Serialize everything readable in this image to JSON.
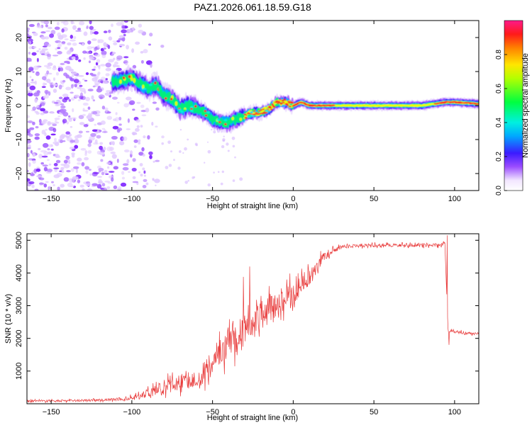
{
  "chart_data": [
    {
      "type": "heatmap",
      "title": "PAZ1.2026.061.18.59.G18",
      "xlabel": "Height of straight line (km)",
      "ylabel": "Frequency (Hz)",
      "xlim": [
        -165,
        115
      ],
      "ylim": [
        -25,
        25
      ],
      "xticks": [
        -150,
        -100,
        -50,
        0,
        50,
        100
      ],
      "yticks": [
        -20,
        -10,
        0,
        10,
        20
      ],
      "colorbar": {
        "label": "Normalized spectral amplitude",
        "range": [
          0.0,
          1.0
        ],
        "ticks": [
          0.0,
          0.2,
          0.4,
          0.6,
          0.8
        ]
      },
      "ridge": {
        "x": [
          -110,
          -100,
          -90,
          -85,
          -80,
          -75,
          -70,
          -65,
          -60,
          -55,
          -50,
          -45,
          -40,
          -35,
          -30,
          -25,
          -20,
          -15,
          -10,
          -5,
          0,
          5,
          10,
          20,
          40,
          60,
          80,
          95,
          100,
          115
        ],
        "y": [
          7,
          8,
          5,
          6,
          3,
          2,
          -1,
          0,
          -1,
          -2,
          -4,
          -5,
          -5,
          -4,
          -3,
          -2,
          -2,
          -1,
          1,
          1,
          0,
          1,
          0,
          0,
          0,
          0,
          0,
          1,
          1,
          0.5
        ]
      },
      "noise_region_x": [
        -165,
        -100
      ]
    },
    {
      "type": "line",
      "title": "",
      "xlabel": "Height of straight line (km)",
      "ylabel": "SNR (10 * v/v)",
      "xlim": [
        -165,
        115
      ],
      "ylim": [
        0,
        5200
      ],
      "xticks": [
        -150,
        -100,
        -50,
        0,
        50,
        100
      ],
      "yticks": [
        1000,
        2000,
        3000,
        4000,
        5000
      ],
      "color": "#e83a3a",
      "series": [
        {
          "name": "SNR",
          "x": [
            -165,
            -150,
            -130,
            -110,
            -100,
            -95,
            -90,
            -85,
            -80,
            -75,
            -70,
            -65,
            -60,
            -55,
            -50,
            -45,
            -40,
            -35,
            -30,
            -25,
            -20,
            -15,
            -10,
            -5,
            0,
            5,
            10,
            15,
            20,
            25,
            30,
            40,
            50,
            60,
            70,
            80,
            90,
            94,
            95,
            96,
            97,
            100,
            110,
            115
          ],
          "values": [
            80,
            90,
            100,
            130,
            180,
            250,
            320,
            430,
            520,
            600,
            640,
            700,
            780,
            950,
            1250,
            1600,
            1900,
            2050,
            2250,
            2450,
            2750,
            2900,
            3050,
            3250,
            3400,
            3600,
            3850,
            4250,
            4550,
            4700,
            4800,
            4830,
            4850,
            4850,
            4850,
            4850,
            4850,
            4900,
            3500,
            2250,
            2200,
            2200,
            2150,
            2150
          ],
          "spread": [
            60,
            60,
            60,
            80,
            120,
            180,
            260,
            330,
            380,
            420,
            450,
            480,
            520,
            620,
            700,
            800,
            900,
            900,
            900,
            850,
            800,
            750,
            700,
            700,
            650,
            550,
            450,
            350,
            250,
            150,
            100,
            90,
            90,
            90,
            90,
            90,
            90,
            100,
            0,
            120,
            100,
            80,
            70,
            70
          ],
          "spikes": [
            {
              "x": -31,
              "y": 3880
            },
            {
              "x": -27,
              "y": 4200
            },
            {
              "x": -20,
              "y": 3300
            },
            {
              "x": -15,
              "y": 3600
            },
            {
              "x": -4,
              "y": 3800
            },
            {
              "x": 2,
              "y": 3900
            },
            {
              "x": 95.5,
              "y": 5150
            },
            {
              "x": 96.5,
              "y": 1800
            }
          ]
        }
      ]
    }
  ]
}
